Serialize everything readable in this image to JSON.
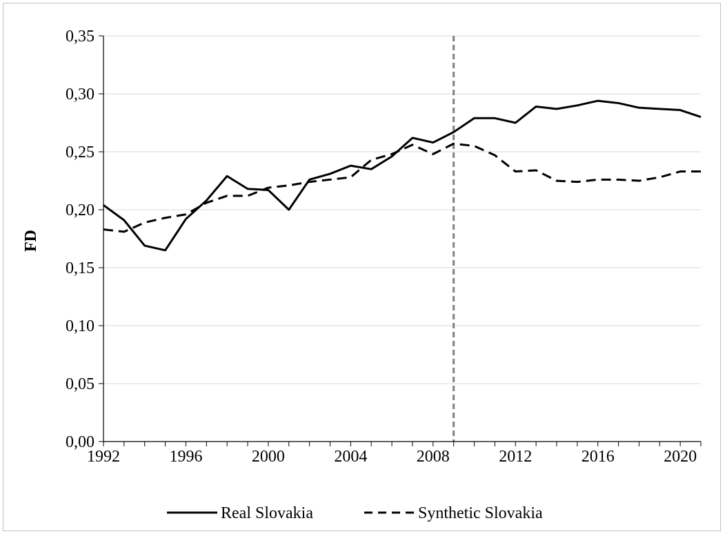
{
  "chart_data": {
    "type": "line",
    "ylabel": "FD",
    "xlabel": "",
    "xlim": [
      1992,
      2021
    ],
    "ylim": [
      0,
      0.35
    ],
    "x_ticks": [
      1992,
      1996,
      2000,
      2004,
      2008,
      2012,
      2016,
      2020
    ],
    "x_tick_labels": [
      "1992",
      "1996",
      "2000",
      "2004",
      "2008",
      "2012",
      "2016",
      "2020"
    ],
    "y_ticks": [
      0,
      0.05,
      0.1,
      0.15,
      0.2,
      0.25,
      0.3,
      0.35
    ],
    "y_tick_labels": [
      "0,00",
      "0,05",
      "0,10",
      "0,15",
      "0,20",
      "0,25",
      "0,30",
      "0,35"
    ],
    "grid": "horizontal",
    "legend_position": "bottom",
    "x": [
      1992,
      1993,
      1994,
      1995,
      1996,
      1997,
      1998,
      1999,
      2000,
      2001,
      2002,
      2003,
      2004,
      2005,
      2006,
      2007,
      2008,
      2009,
      2010,
      2011,
      2012,
      2013,
      2014,
      2015,
      2016,
      2017,
      2018,
      2019,
      2020,
      2021
    ],
    "series": [
      {
        "name": "Real Slovakia",
        "style": "solid",
        "color": "#000000",
        "values": [
          0.204,
          0.191,
          0.169,
          0.165,
          0.192,
          0.208,
          0.229,
          0.218,
          0.217,
          0.2,
          0.226,
          0.231,
          0.238,
          0.235,
          0.246,
          0.262,
          0.258,
          0.267,
          0.279,
          0.279,
          0.275,
          0.289,
          0.287,
          0.29,
          0.294,
          0.292,
          0.288,
          0.287,
          0.286,
          0.28
        ]
      },
      {
        "name": "Synthetic Slovakia",
        "style": "dashed",
        "color": "#000000",
        "values": [
          0.183,
          0.181,
          0.189,
          0.193,
          0.196,
          0.206,
          0.212,
          0.212,
          0.219,
          0.221,
          0.224,
          0.226,
          0.228,
          0.243,
          0.248,
          0.256,
          0.248,
          0.257,
          0.255,
          0.247,
          0.233,
          0.234,
          0.225,
          0.224,
          0.226,
          0.226,
          0.225,
          0.228,
          0.233,
          0.233
        ]
      }
    ],
    "reference_line": {
      "x": 2009,
      "style": "dashed",
      "color": "#808080"
    },
    "colors": {
      "gridline": "#d9d9d9",
      "axis": "#000000",
      "frame": "#bfbfbf"
    }
  }
}
